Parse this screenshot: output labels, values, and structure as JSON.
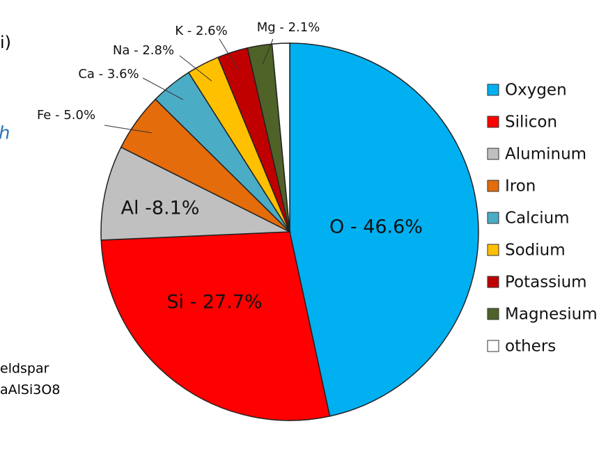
{
  "chart_data": {
    "type": "pie",
    "categories": [
      "Oxygen",
      "Silicon",
      "Aluminum",
      "Iron",
      "Calcium",
      "Sodium",
      "Potassium",
      "Magnesium",
      "others"
    ],
    "values": [
      46.6,
      27.7,
      8.1,
      5.0,
      3.6,
      2.8,
      2.6,
      2.1,
      1.5
    ],
    "value_labels": [
      "O - 46.6%",
      "Si - 27.7%",
      "Al -8.1%",
      "Fe - 5.0%",
      "Ca - 3.6%",
      "Na - 2.8%",
      "K - 2.6%",
      "Mg - 2.1%",
      null
    ],
    "colors": [
      "#00b0f0",
      "#ff0000",
      "#c0c0c0",
      "#e46c0a",
      "#4bacc6",
      "#ffc000",
      "#c00000",
      "#4f6228",
      "#ffffff"
    ],
    "legend": "right"
  },
  "fragments": [
    "i)",
    "h",
    "eldspar",
    "aAlSi",
    "3",
    "O8"
  ]
}
